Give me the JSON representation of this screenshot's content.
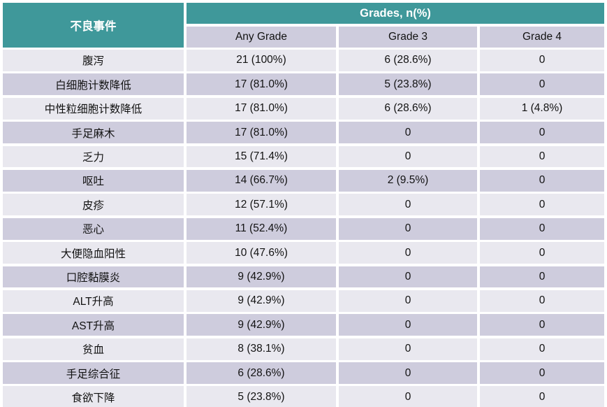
{
  "colors": {
    "header_teal": "#3F989A",
    "header_text": "#FFFFFF",
    "row_light": "#E9E8EF",
    "row_lavender": "#CECCDD",
    "grid_lines": "#FFFFFF",
    "body_text": "#121212"
  },
  "chart_data": {
    "type": "table",
    "corner_header": "不良事件",
    "group_header": "Grades, n(%)",
    "sub_headers": [
      "Any Grade",
      "Grade 3",
      "Grade 4"
    ],
    "columns": [
      "不良事件",
      "Any Grade",
      "Grade 3",
      "Grade 4"
    ],
    "rows": [
      [
        "腹泻",
        "21 (100%)",
        "6 (28.6%)",
        "0"
      ],
      [
        "白细胞计数降低",
        "17 (81.0%)",
        "5 (23.8%)",
        "0"
      ],
      [
        "中性粒细胞计数降低",
        "17 (81.0%)",
        "6 (28.6%)",
        "1 (4.8%)"
      ],
      [
        "手足麻木",
        "17 (81.0%)",
        "0",
        "0"
      ],
      [
        "乏力",
        "15 (71.4%)",
        "0",
        "0"
      ],
      [
        "呕吐",
        "14 (66.7%)",
        "2 (9.5%)",
        "0"
      ],
      [
        "皮疹",
        "12 (57.1%)",
        "0",
        "0"
      ],
      [
        "恶心",
        "11 (52.4%)",
        "0",
        "0"
      ],
      [
        "大便隐血阳性",
        "10 (47.6%)",
        "0",
        "0"
      ],
      [
        "口腔黏膜炎",
        "9 (42.9%)",
        "0",
        "0"
      ],
      [
        "ALT升高",
        "9 (42.9%)",
        "0",
        "0"
      ],
      [
        "AST升高",
        "9 (42.9%)",
        "0",
        "0"
      ],
      [
        "贫血",
        "8 (38.1%)",
        "0",
        "0"
      ],
      [
        "手足综合征",
        "6 (28.6%)",
        "0",
        "0"
      ],
      [
        "食欲下降",
        "5 (23.8%)",
        "0",
        "0"
      ]
    ]
  }
}
